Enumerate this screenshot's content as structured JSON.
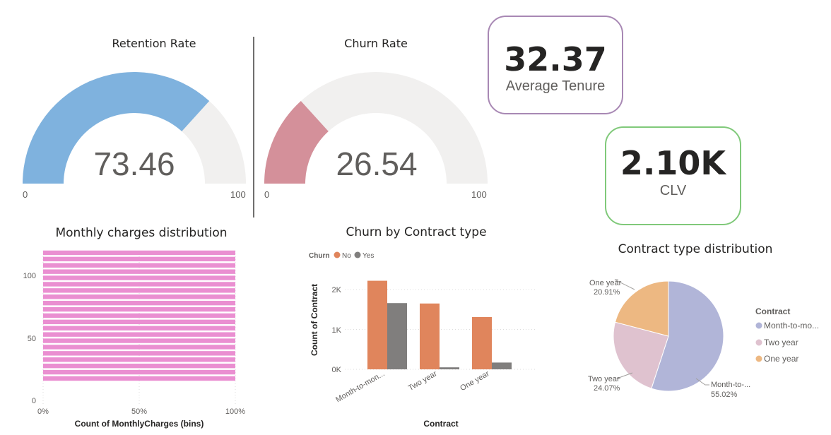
{
  "gauges": {
    "retention": {
      "title": "Retention Rate",
      "value": "73.46",
      "min_label": "0",
      "max_label": "100",
      "fraction": 0.7346,
      "color": "#7fb2de"
    },
    "churn": {
      "title": "Churn Rate",
      "value": "26.54",
      "min_label": "0",
      "max_label": "100",
      "fraction": 0.2654,
      "color": "#d4909a"
    }
  },
  "cards": {
    "tenure": {
      "value": "32.37",
      "label": "Average Tenure",
      "border": "#a888b4"
    },
    "clv": {
      "value": "2.10K",
      "label": "CLV",
      "border": "#80c97a"
    }
  },
  "chart_data": [
    {
      "type": "bar",
      "orientation": "horizontal",
      "title": "Monthly charges distribution",
      "xlabel": "Count of MonthlyCharges (bins)",
      "ylabel": "",
      "x_ticks": [
        "0%",
        "50%",
        "100%"
      ],
      "y_ticks": [
        "0",
        "50",
        "100"
      ],
      "bins_from": 18,
      "bins_to": 118,
      "bin_step": 5,
      "values": [
        1,
        1,
        1,
        1,
        1,
        1,
        1,
        1,
        1,
        1,
        1,
        1,
        1,
        1,
        1,
        1,
        1,
        1,
        1,
        1,
        1
      ],
      "color": "#ea8fd1"
    },
    {
      "type": "bar",
      "title": "Churn by Contract type",
      "legend_title": "Churn",
      "xlabel": "Contract",
      "ylabel": "Count of Contract",
      "categories": [
        "Month-to-mon...",
        "Two year",
        "One year"
      ],
      "series": [
        {
          "name": "No",
          "values": [
            2220,
            1650,
            1310
          ],
          "color": "#e0855c"
        },
        {
          "name": "Yes",
          "values": [
            1660,
            50,
            170
          ],
          "color": "#807e7d"
        }
      ],
      "y_ticks": [
        "0K",
        "1K",
        "2K"
      ],
      "ylim": [
        0,
        2400
      ]
    },
    {
      "type": "pie",
      "title": "Contract type distribution",
      "legend_title": "Contract",
      "slices": [
        {
          "label": "Month-to-mo...",
          "value": 55.02,
          "color": "#b1b5d8"
        },
        {
          "label": "Two year",
          "value": 24.07,
          "color": "#dfc2cf"
        },
        {
          "label": "One year",
          "value": 20.91,
          "color": "#edb882"
        }
      ],
      "data_labels": [
        {
          "name": "Month-to-...",
          "pct": "55.02%"
        },
        {
          "name": "Two year",
          "pct": "24.07%"
        },
        {
          "name": "One year",
          "pct": "20.91%"
        }
      ]
    }
  ]
}
